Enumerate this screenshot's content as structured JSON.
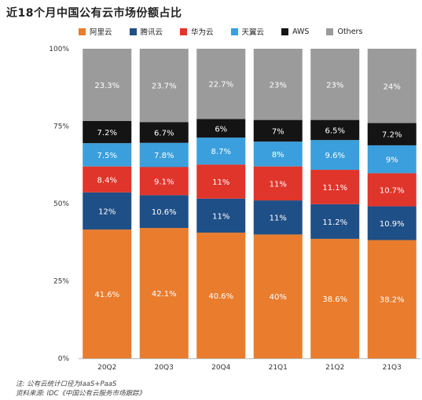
{
  "title": "近18个月中国公有云市场份额占比",
  "notes": {
    "line1": "注: 公有云统计口径为IaaS+PaaS",
    "line2": "资料来源: IDC《中国公有云服务市场跟踪》"
  },
  "chart_data": {
    "type": "bar",
    "stacked": true,
    "categories": [
      "20Q2",
      "20Q3",
      "20Q4",
      "21Q1",
      "21Q2",
      "21Q3"
    ],
    "ylim": [
      0,
      100
    ],
    "yticks": [
      "0%",
      "25%",
      "50%",
      "75%",
      "100%"
    ],
    "grid": false,
    "legend_position": "top",
    "series": [
      {
        "name": "阿里云",
        "color": "#e97c2d",
        "values": [
          41.6,
          42.1,
          40.6,
          40,
          38.6,
          38.2
        ],
        "labels": [
          "41.6%",
          "42.1%",
          "40.6%",
          "40%",
          "38.6%",
          "38.2%"
        ]
      },
      {
        "name": "腾讯云",
        "color": "#1f4f87",
        "values": [
          12,
          10.6,
          11,
          11,
          11.2,
          10.9
        ],
        "labels": [
          "12%",
          "10.6%",
          "11%",
          "11%",
          "11.2%",
          "10.9%"
        ]
      },
      {
        "name": "华为云",
        "color": "#e0352b",
        "values": [
          8.4,
          9.1,
          11,
          11,
          11.1,
          10.7
        ],
        "labels": [
          "8.4%",
          "9.1%",
          "11%",
          "11%",
          "11.1%",
          "10.7%"
        ]
      },
      {
        "name": "天翼云",
        "color": "#3a9fdc",
        "values": [
          7.5,
          7.8,
          8.7,
          8,
          9.6,
          9
        ],
        "labels": [
          "7.5%",
          "7.8%",
          "8.7%",
          "8%",
          "9.6%",
          "9%"
        ]
      },
      {
        "name": "AWS",
        "color": "#141414",
        "values": [
          7.2,
          6.7,
          6,
          7,
          6.5,
          7.2
        ],
        "labels": [
          "7.2%",
          "6.7%",
          "6%",
          "7%",
          "6.5%",
          "7.2%"
        ]
      },
      {
        "name": "Others",
        "color": "#9b9b9b",
        "values": [
          23.3,
          23.7,
          22.7,
          23,
          23,
          24
        ],
        "labels": [
          "23.3%",
          "23.7%",
          "22.7%",
          "23%",
          "23%",
          "24%"
        ]
      }
    ]
  }
}
